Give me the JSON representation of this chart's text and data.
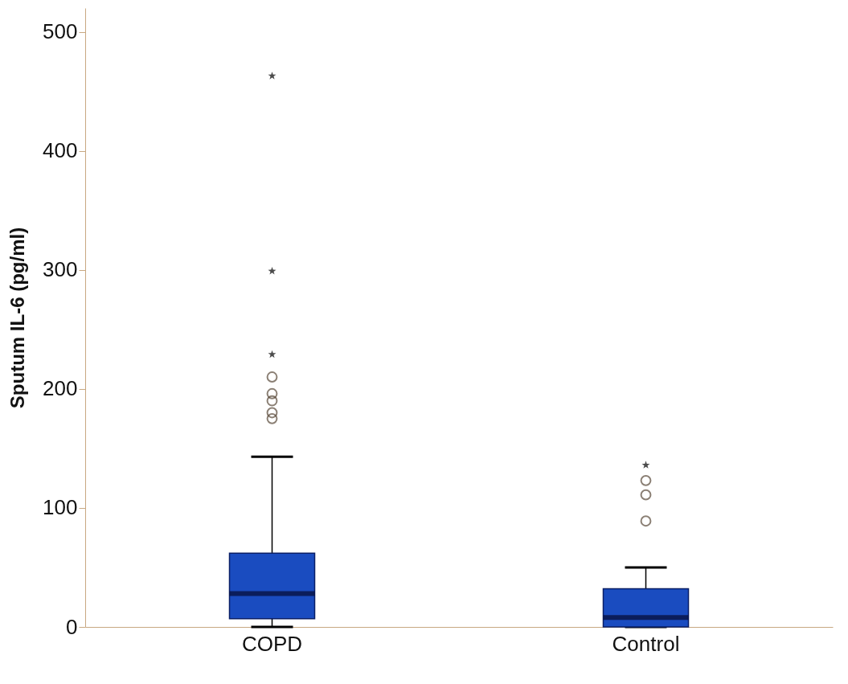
{
  "chart_data": {
    "type": "box",
    "ylabel": "Sputum IL-6 (pg/ml)",
    "categories": [
      "COPD",
      "Control"
    ],
    "ylim": [
      0,
      520
    ],
    "yticks": [
      0,
      100,
      200,
      300,
      400,
      500
    ],
    "grid": false,
    "color": "#1a4cc0",
    "boxes": [
      {
        "low": 0,
        "q1": 7,
        "median": 28,
        "q3": 62,
        "high": 143,
        "outliers": [
          210,
          196,
          190,
          180,
          175
        ]
      },
      {
        "low": 0,
        "q1": 0,
        "median": 8,
        "q3": 32,
        "high": 50,
        "outliers": [
          123,
          111,
          89
        ]
      }
    ],
    "series": [
      {
        "type": "scatter",
        "marker": "star",
        "color": "#000000",
        "x": [
          "COPD",
          "COPD",
          "COPD",
          "Control"
        ],
        "values": [
          463,
          299,
          229,
          136
        ]
      }
    ]
  }
}
